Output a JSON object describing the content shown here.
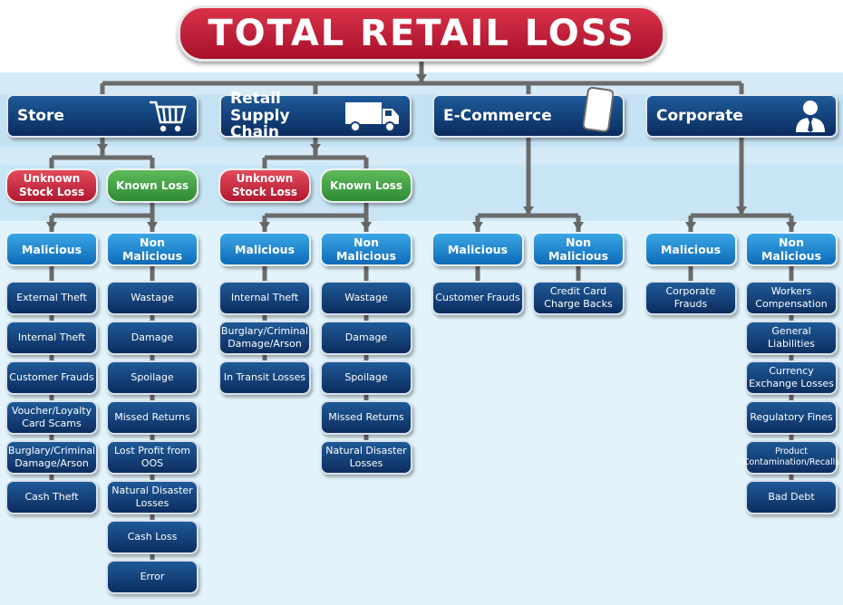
{
  "title": "TOTAL RETAIL LOSS",
  "colors": {
    "title_red": "#c1213a",
    "category_navy": "#0f3a72",
    "unknown_red": "#c8283c",
    "known_green": "#3ea046",
    "malicious_blue": "#1f86cf",
    "leaf_navy": "#143f78",
    "connector": "#666666"
  },
  "categories": [
    {
      "label": "Store",
      "icon": "shopping-cart-icon",
      "unknown_label": "Unknown Stock Loss",
      "known_label": "Known Loss",
      "malicious_label": "Malicious",
      "non_malicious_label": "Non Malicious",
      "malicious": [
        "External Theft",
        "Internal Theft",
        "Customer Frauds",
        "Voucher/Loyalty Card Scams",
        "Burglary/Criminal Damage/Arson",
        "Cash Theft"
      ],
      "non_malicious": [
        "Wastage",
        "Damage",
        "Spoilage",
        "Missed Returns",
        "Lost Profit from OOS",
        "Natural Disaster Losses",
        "Cash Loss",
        "Error"
      ]
    },
    {
      "label": "Retail Supply Chain",
      "icon": "delivery-truck-icon",
      "unknown_label": "Unknown Stock Loss",
      "known_label": "Known Loss",
      "malicious_label": "Malicious",
      "non_malicious_label": "Non Malicious",
      "malicious": [
        "Internal Theft",
        "Burglary/Criminal Damage/Arson",
        "In Transit Losses"
      ],
      "non_malicious": [
        "Wastage",
        "Damage",
        "Spoilage",
        "Missed Returns",
        "Natural Disaster Losses"
      ]
    },
    {
      "label": "E-Commerce",
      "icon": "smartphone-icon",
      "malicious_label": "Malicious",
      "non_malicious_label": "Non Malicious",
      "malicious": [
        "Customer Frauds"
      ],
      "non_malicious": [
        "Credit Card Charge Backs"
      ]
    },
    {
      "label": "Corporate",
      "icon": "businessman-icon",
      "malicious_label": "Malicious",
      "non_malicious_label": "Non Malicious",
      "malicious": [
        "Corporate Frauds"
      ],
      "non_malicious": [
        "Workers Compensation",
        "General Liabilities",
        "Currency Exchange Losses",
        "Regulatory Fines",
        "Product Contamination/Recalls",
        "Bad Debt"
      ]
    }
  ]
}
